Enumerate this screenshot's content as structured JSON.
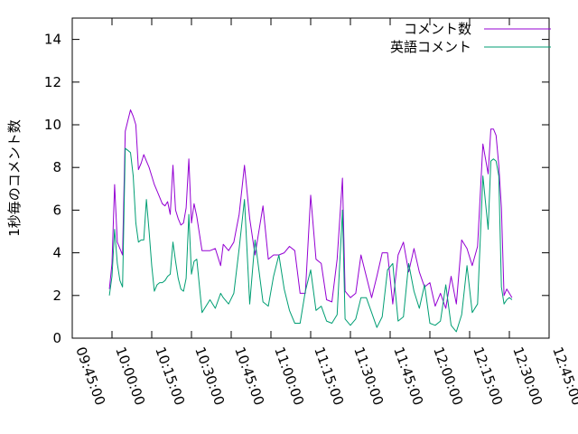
{
  "chart_data": {
    "type": "line",
    "title": "",
    "xlabel": "",
    "ylabel": "1秒毎のコメント数",
    "xlim": [
      "09:45:00",
      "12:45:00"
    ],
    "ylim": [
      0,
      15
    ],
    "y_ticks": [
      0,
      2,
      4,
      6,
      8,
      10,
      12,
      14
    ],
    "x_ticks": [
      "09:45:00",
      "10:00:00",
      "10:15:00",
      "10:30:00",
      "10:45:00",
      "11:00:00",
      "11:15:00",
      "11:30:00",
      "11:45:00",
      "12:00:00",
      "12:15:00",
      "12:30:00",
      "12:45:00"
    ],
    "grid": false,
    "legend_position": "top-right",
    "series": [
      {
        "name": "コメント数",
        "color": "#9400d3",
        "x": [
          "09:59:00",
          "10:00:00",
          "10:01:00",
          "10:02:00",
          "10:03:00",
          "10:04:00",
          "10:05:00",
          "10:06:00",
          "10:07:00",
          "10:08:00",
          "10:09:00",
          "10:10:00",
          "10:11:00",
          "10:12:00",
          "10:13:00",
          "10:14:00",
          "10:15:00",
          "10:16:00",
          "10:17:00",
          "10:18:00",
          "10:19:00",
          "10:20:00",
          "10:21:00",
          "10:22:00",
          "10:23:00",
          "10:24:00",
          "10:25:00",
          "10:26:00",
          "10:27:00",
          "10:28:00",
          "10:29:00",
          "10:30:00",
          "10:31:00",
          "10:32:00",
          "10:34:00",
          "10:37:00",
          "10:39:00",
          "10:41:00",
          "10:42:00",
          "10:44:00",
          "10:46:00",
          "10:48:00",
          "10:50:00",
          "10:52:00",
          "10:54:00",
          "10:57:00",
          "10:59:00",
          "11:01:00",
          "11:03:00",
          "11:05:00",
          "11:07:00",
          "11:09:00",
          "11:11:00",
          "11:13:00",
          "11:15:00",
          "11:17:00",
          "11:19:00",
          "11:21:00",
          "11:23:00",
          "11:25:00",
          "11:27:00",
          "11:28:00",
          "11:30:00",
          "11:32:00",
          "11:34:00",
          "11:36:00",
          "11:38:00",
          "11:40:00",
          "11:42:00",
          "11:44:00",
          "11:46:00",
          "11:48:00",
          "11:50:00",
          "11:52:00",
          "11:54:00",
          "11:56:00",
          "11:58:00",
          "12:00:00",
          "12:02:00",
          "12:04:00",
          "12:06:00",
          "12:08:00",
          "12:10:00",
          "12:12:00",
          "12:14:00",
          "12:16:00",
          "12:18:00",
          "12:20:00",
          "12:22:00",
          "12:23:00",
          "12:24:00",
          "12:25:00",
          "12:26:00",
          "12:27:00",
          "12:28:00",
          "12:29:00",
          "12:30:00",
          "12:31:00"
        ],
        "y": [
          2.3,
          3.5,
          7.2,
          4.5,
          4.2,
          3.9,
          9.7,
          10.2,
          10.7,
          10.4,
          10.0,
          7.9,
          8.2,
          8.6,
          8.3,
          8.0,
          7.6,
          7.2,
          6.9,
          6.6,
          6.3,
          6.2,
          6.4,
          5.8,
          8.1,
          6.0,
          5.6,
          5.3,
          5.4,
          6.1,
          8.4,
          5.4,
          6.3,
          5.7,
          4.1,
          4.1,
          4.2,
          3.4,
          4.4,
          4.1,
          4.5,
          5.8,
          8.1,
          5.6,
          3.9,
          6.2,
          3.7,
          3.9,
          3.9,
          4.0,
          4.3,
          4.1,
          2.1,
          2.1,
          6.7,
          3.7,
          3.5,
          1.8,
          1.7,
          3.7,
          7.5,
          2.2,
          1.9,
          2.1,
          3.9,
          2.9,
          1.9,
          2.9,
          4.0,
          4.0,
          1.6,
          3.9,
          4.5,
          3.1,
          4.2,
          3.1,
          2.4,
          2.6,
          1.5,
          2.1,
          1.4,
          2.9,
          1.6,
          4.6,
          4.2,
          3.4,
          4.3,
          9.1,
          7.7,
          9.8,
          9.8,
          9.5,
          8.1,
          6.1,
          2.0,
          2.3,
          2.1,
          1.9
        ]
      },
      {
        "name": "英語コメント",
        "color": "#009e73",
        "x": [
          "09:59:00",
          "10:00:00",
          "10:01:00",
          "10:02:00",
          "10:03:00",
          "10:04:00",
          "10:05:00",
          "10:06:00",
          "10:07:00",
          "10:08:00",
          "10:09:00",
          "10:10:00",
          "10:11:00",
          "10:12:00",
          "10:13:00",
          "10:14:00",
          "10:15:00",
          "10:16:00",
          "10:17:00",
          "10:18:00",
          "10:19:00",
          "10:20:00",
          "10:21:00",
          "10:22:00",
          "10:23:00",
          "10:24:00",
          "10:25:00",
          "10:26:00",
          "10:27:00",
          "10:28:00",
          "10:29:00",
          "10:30:00",
          "10:31:00",
          "10:32:00",
          "10:34:00",
          "10:37:00",
          "10:39:00",
          "10:41:00",
          "10:42:00",
          "10:44:00",
          "10:46:00",
          "10:48:00",
          "10:50:00",
          "10:52:00",
          "10:54:00",
          "10:57:00",
          "10:59:00",
          "11:01:00",
          "11:03:00",
          "11:05:00",
          "11:07:00",
          "11:09:00",
          "11:11:00",
          "11:13:00",
          "11:15:00",
          "11:17:00",
          "11:19:00",
          "11:21:00",
          "11:23:00",
          "11:25:00",
          "11:27:00",
          "11:28:00",
          "11:30:00",
          "11:32:00",
          "11:34:00",
          "11:36:00",
          "11:38:00",
          "11:40:00",
          "11:42:00",
          "11:44:00",
          "11:46:00",
          "11:48:00",
          "11:50:00",
          "11:52:00",
          "11:54:00",
          "11:56:00",
          "11:58:00",
          "12:00:00",
          "12:02:00",
          "12:04:00",
          "12:06:00",
          "12:08:00",
          "12:10:00",
          "12:12:00",
          "12:14:00",
          "12:16:00",
          "12:18:00",
          "12:20:00",
          "12:22:00",
          "12:23:00",
          "12:24:00",
          "12:25:00",
          "12:26:00",
          "12:27:00",
          "12:28:00",
          "12:29:00",
          "12:30:00",
          "12:31:00"
        ],
        "y": [
          2.0,
          2.9,
          5.1,
          3.5,
          2.7,
          2.4,
          8.9,
          8.8,
          8.7,
          7.6,
          5.4,
          4.5,
          4.6,
          4.6,
          6.5,
          5.0,
          3.4,
          2.2,
          2.5,
          2.6,
          2.6,
          2.7,
          2.9,
          3.0,
          4.5,
          3.6,
          2.8,
          2.3,
          2.2,
          2.8,
          5.8,
          3.0,
          3.6,
          3.7,
          1.2,
          1.8,
          1.4,
          2.1,
          1.9,
          1.6,
          2.1,
          4.2,
          6.5,
          1.6,
          4.6,
          1.7,
          1.5,
          2.9,
          3.9,
          2.3,
          1.3,
          0.7,
          0.7,
          2.2,
          3.2,
          1.3,
          1.5,
          0.8,
          0.7,
          1.1,
          6.0,
          0.9,
          0.6,
          0.9,
          1.9,
          1.9,
          1.2,
          0.5,
          1.0,
          3.2,
          3.5,
          0.8,
          1.0,
          3.5,
          2.2,
          1.4,
          2.5,
          0.7,
          0.6,
          0.8,
          2.5,
          0.6,
          0.3,
          1.1,
          3.4,
          1.2,
          1.6,
          7.6,
          5.1,
          8.3,
          8.4,
          8.3,
          7.6,
          2.4,
          1.6,
          1.8,
          1.9,
          1.8
        ]
      }
    ]
  }
}
